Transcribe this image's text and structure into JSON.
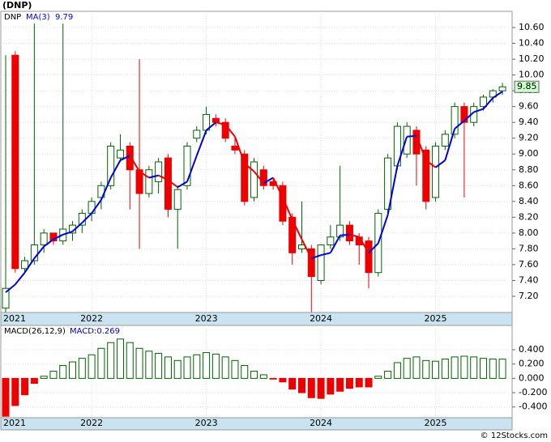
{
  "chart_data": [
    {
      "type": "candlestick",
      "title": "(DNP)",
      "credit": "© 12Stocks.com",
      "categories": [
        null,
        null,
        null,
        null,
        null,
        null,
        null,
        null,
        null,
        "2022",
        null,
        null,
        null,
        null,
        null,
        null,
        null,
        null,
        null,
        null,
        null,
        "2023",
        null,
        null,
        null,
        null,
        null,
        null,
        null,
        null,
        null,
        null,
        null,
        "2024",
        null,
        null,
        null,
        null,
        null,
        null,
        null,
        null,
        null,
        null,
        null,
        "2025",
        null,
        null,
        null,
        null,
        null,
        null,
        null
      ],
      "year_first": "2021",
      "ylim": [
        6.995,
        10.805
      ],
      "yticks": [
        {
          "value": 7.2,
          "label": "7.20"
        },
        {
          "value": 7.4,
          "label": "7.40"
        },
        {
          "value": 7.6,
          "label": "7.60"
        },
        {
          "value": 7.8,
          "label": "7.80"
        },
        {
          "value": 8.0,
          "label": "8.00"
        },
        {
          "value": 8.2,
          "label": "8.20"
        },
        {
          "value": 8.4,
          "label": "8.40"
        },
        {
          "value": 8.6,
          "label": "8.60"
        },
        {
          "value": 8.8,
          "label": "8.80"
        },
        {
          "value": 9.0,
          "label": "9.00"
        },
        {
          "value": 9.2,
          "label": "9.20"
        },
        {
          "value": 9.4,
          "label": "9.40"
        },
        {
          "value": 9.6,
          "label": "9.60"
        },
        {
          "value": 9.8,
          "label": "9.80"
        },
        {
          "value": 10.0,
          "label": "10.00"
        },
        {
          "value": 10.2,
          "label": "10.20"
        },
        {
          "value": 10.4,
          "label": "10.40"
        },
        {
          "value": 10.6,
          "label": "10.60"
        }
      ],
      "grid": true,
      "series": [
        {
          "name": "DNP",
          "up_color": "#006400",
          "down_color": "#ee0000",
          "open": [
            7.05,
            10.25,
            7.55,
            7.65,
            7.85,
            8.0,
            7.9,
            8.0,
            8.1,
            8.25,
            8.45,
            8.6,
            8.95,
            9.1,
            8.8,
            8.5,
            8.65,
            8.95,
            8.3,
            8.6,
            9.2,
            9.3,
            9.45,
            9.4,
            9.1,
            9.0,
            8.45,
            8.8,
            8.65,
            8.6,
            8.2,
            7.8,
            7.8,
            7.4,
            7.85,
            7.95,
            8.1,
            7.95,
            7.9,
            7.5,
            8.3,
            8.85,
            9.0,
            9.3,
            9.05,
            8.45,
            9.1,
            9.25,
            9.6,
            9.4,
            9.6,
            9.72,
            9.8
          ],
          "high": [
            10.25,
            10.3,
            7.7,
            10.65,
            8.05,
            8.0,
            10.65,
            8.15,
            8.3,
            8.45,
            8.65,
            9.15,
            9.25,
            9.15,
            10.2,
            8.85,
            8.95,
            9.0,
            8.6,
            9.15,
            9.35,
            9.6,
            9.5,
            9.45,
            9.2,
            9.05,
            8.95,
            8.85,
            8.7,
            8.65,
            8.25,
            8.4,
            7.85,
            7.85,
            8.1,
            8.85,
            8.15,
            8.0,
            7.95,
            8.3,
            9.0,
            9.4,
            9.4,
            9.35,
            9.1,
            9.15,
            9.3,
            9.65,
            9.65,
            9.65,
            9.75,
            9.82,
            9.9
          ],
          "low": [
            7.0,
            7.5,
            7.5,
            7.6,
            7.75,
            7.85,
            7.85,
            7.9,
            8.0,
            8.15,
            8.3,
            8.55,
            8.9,
            8.3,
            7.8,
            8.45,
            8.5,
            8.2,
            7.8,
            8.55,
            9.15,
            9.25,
            9.35,
            9.15,
            9.0,
            8.35,
            8.4,
            8.55,
            8.55,
            8.1,
            7.6,
            7.75,
            7.0,
            7.35,
            7.8,
            7.9,
            7.85,
            7.6,
            7.3,
            7.45,
            8.25,
            8.8,
            8.95,
            8.6,
            8.3,
            8.4,
            9.05,
            9.2,
            8.45,
            9.35,
            9.55,
            9.65,
            9.75
          ],
          "close": [
            7.3,
            7.55,
            7.65,
            7.85,
            8.0,
            7.9,
            8.05,
            8.1,
            8.25,
            8.4,
            8.6,
            9.1,
            9.05,
            8.8,
            8.5,
            8.8,
            8.9,
            8.3,
            8.55,
            9.1,
            9.3,
            9.5,
            9.4,
            9.2,
            9.05,
            8.4,
            8.9,
            8.6,
            8.6,
            8.15,
            7.75,
            7.85,
            7.45,
            7.85,
            7.95,
            8.1,
            7.9,
            7.85,
            7.5,
            8.25,
            8.95,
            9.35,
            9.35,
            9.0,
            8.4,
            9.1,
            9.25,
            9.6,
            9.4,
            9.6,
            9.72,
            9.8,
            9.85
          ]
        },
        {
          "name": "MA(3)",
          "color": "#0000dd",
          "down_color": "#ee0000",
          "values": [
            7.25,
            7.35,
            7.5,
            7.68,
            7.83,
            7.92,
            7.98,
            8.02,
            8.13,
            8.25,
            8.42,
            8.7,
            8.92,
            8.98,
            8.78,
            8.7,
            8.73,
            8.67,
            8.58,
            8.65,
            8.98,
            9.3,
            9.4,
            9.37,
            9.22,
            8.88,
            8.78,
            8.63,
            8.7,
            8.45,
            8.17,
            7.92,
            7.68,
            7.72,
            7.75,
            7.97,
            7.98,
            7.95,
            7.75,
            7.87,
            8.23,
            8.85,
            9.22,
            9.23,
            8.92,
            8.83,
            8.92,
            9.32,
            9.42,
            9.53,
            9.57,
            9.71,
            9.79
          ]
        }
      ]
    },
    {
      "type": "bar",
      "value_prefix": "MACD:",
      "ylim": [
        -0.55,
        0.74
      ],
      "yticks": [
        {
          "value": -0.4,
          "label": "-0.400"
        },
        {
          "value": -0.2,
          "label": "-0.200"
        },
        {
          "value": 0,
          "label": "0.000"
        },
        {
          "value": 0.2,
          "label": "0.200"
        },
        {
          "value": 0.4,
          "label": "0.400"
        }
      ],
      "grid": true,
      "series": [
        {
          "name": "MACD(26,12,9)",
          "color": "#006400",
          "down_color": "#ee0000",
          "values": [
            -0.53,
            -0.38,
            -0.23,
            -0.07,
            0.03,
            0.1,
            0.18,
            0.23,
            0.28,
            0.33,
            0.42,
            0.5,
            0.55,
            0.5,
            0.42,
            0.38,
            0.35,
            0.3,
            0.25,
            0.3,
            0.33,
            0.36,
            0.34,
            0.3,
            0.25,
            0.18,
            0.1,
            0.05,
            -0.01,
            -0.05,
            -0.15,
            -0.2,
            -0.27,
            -0.28,
            -0.22,
            -0.18,
            -0.14,
            -0.12,
            -0.12,
            0.03,
            0.1,
            0.22,
            0.28,
            0.3,
            0.25,
            0.24,
            0.27,
            0.3,
            0.31,
            0.3,
            0.28,
            0.27,
            0.269
          ]
        }
      ]
    }
  ]
}
